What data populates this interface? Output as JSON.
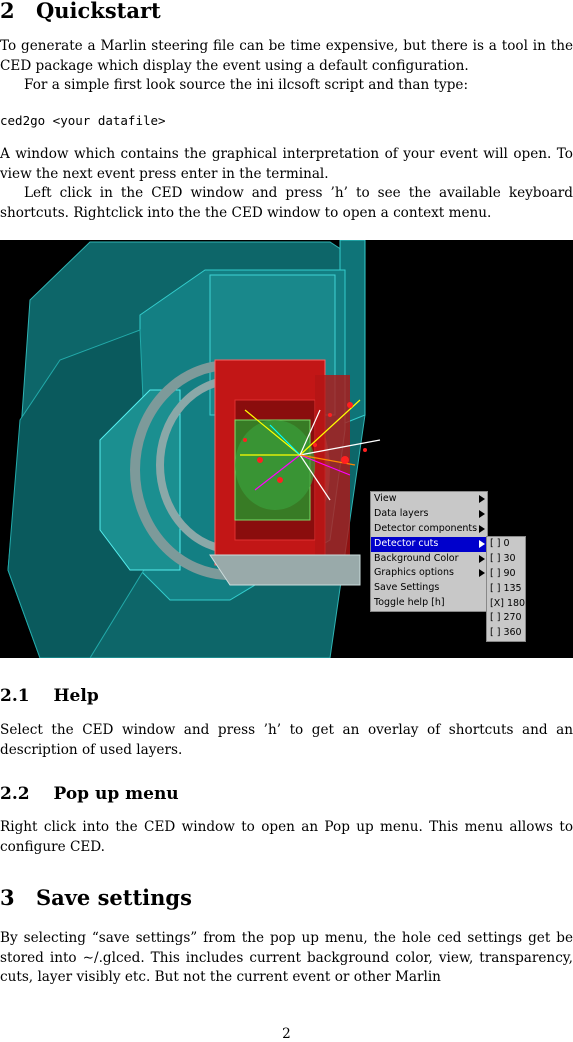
{
  "sections": {
    "quickstart": {
      "number": "2",
      "title": "Quickstart"
    },
    "help": {
      "number": "2.1",
      "title": "Help"
    },
    "popup": {
      "number": "2.2",
      "title": "Pop up menu"
    },
    "save": {
      "number": "3",
      "title": "Save settings"
    }
  },
  "paragraphs": {
    "p1": "To generate a Marlin steering file can be time expensive, but there is a tool in the CED package which display the event using a default configuration.",
    "p2": "For a simple first look source the ini ilcsoft script and than type:",
    "code": "ced2go <your datafile>",
    "p3": "A window which contains the graphical interpretation of your event will open. To view the next event press enter in the terminal.",
    "p4": "Left click in the CED window and press ’h’ to see the available keyboard shortcuts. Rightclick into the the CED window to open a context menu.",
    "p_help": "Select the CED window and press ’h’ to get an overlay of shortcuts and an description of used layers.",
    "p_popup": "Right click into the CED window to open an Pop up menu. This menu allows to configure CED.",
    "p_save": "By selecting “save settings” from the pop up menu, the hole ced settings get be stored into ∼/.glced. This includes current background color, view, transparency, cuts, layer visibly etc. But not the current event or other Marlin"
  },
  "context_menu": {
    "items": [
      "View",
      "Data layers",
      "Detector components",
      "Detector cuts",
      "Background Color",
      "Graphics options",
      "Save Settings",
      "Toggle help [h]"
    ],
    "selected": "Detector cuts"
  },
  "cuts_menu": {
    "items": [
      "[ ] 0",
      "[ ] 30",
      "[ ] 90",
      "[ ] 135",
      "[X] 180",
      "[ ] 270",
      "[ ] 360"
    ]
  },
  "page_number": "2",
  "colors": {
    "figure_bg": "#000000",
    "detector_teal": "#0e6f73",
    "menu_bg": "#c8c8c8",
    "menu_highlight": "#0000cc"
  }
}
